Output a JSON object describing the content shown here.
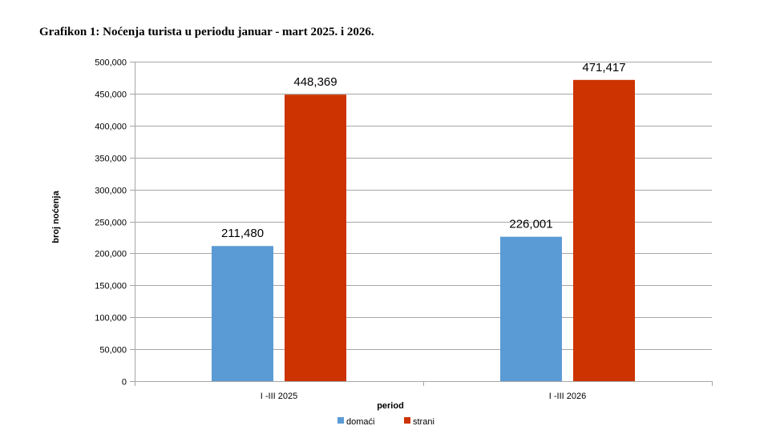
{
  "chart_data": {
    "type": "bar",
    "title": "Grafikon 1: Noćenja turista u periodu januar - mart 2025. i 2026.",
    "xlabel": "period",
    "ylabel": "broj noćenja",
    "categories": [
      "I -III 2025",
      "I -III 2026"
    ],
    "series": [
      {
        "name": "domaći",
        "values": [
          211480,
          226001
        ],
        "value_labels": [
          "211,480",
          "226,001"
        ],
        "color": "#5b9bd5"
      },
      {
        "name": "strani",
        "values": [
          448369,
          471417
        ],
        "value_labels": [
          "448,369",
          "471,417"
        ],
        "color": "#cc3300"
      }
    ],
    "ylim": [
      0,
      500000
    ],
    "yticks": [
      0,
      50000,
      100000,
      150000,
      200000,
      250000,
      300000,
      350000,
      400000,
      450000,
      500000
    ],
    "ytick_labels": [
      "0",
      "50,000",
      "100,000",
      "150,000",
      "200,000",
      "250,000",
      "300,000",
      "350,000",
      "400,000",
      "450,000",
      "500,000"
    ],
    "grid": true,
    "gridline_color": "#a6a6a6",
    "legend_position": "bottom"
  }
}
